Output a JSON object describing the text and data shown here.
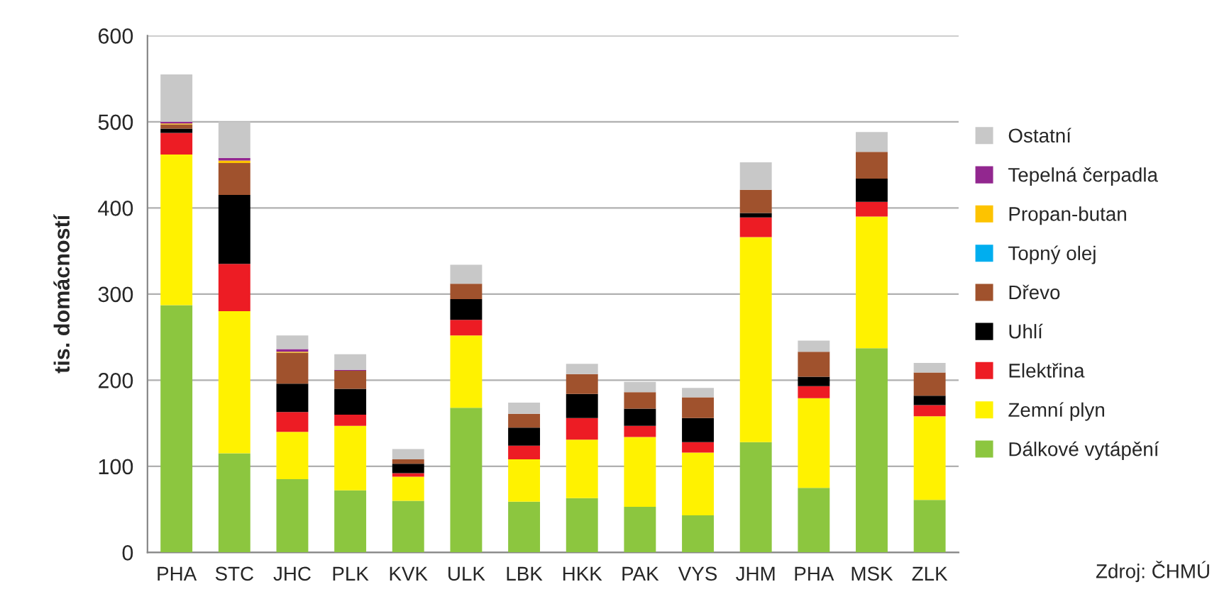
{
  "chart_data": {
    "type": "bar",
    "stacked": true,
    "ylabel": "tis. domácností",
    "categories": [
      "PHA",
      "STC",
      "JHC",
      "PLK",
      "KVK",
      "ULK",
      "LBK",
      "HKK",
      "PAK",
      "VYS",
      "JHM",
      "PHA",
      "MSK",
      "ZLK"
    ],
    "series": [
      {
        "name": "Dálkové vytápění",
        "color": "#8cc63f",
        "values": [
          287,
          115,
          85,
          72,
          60,
          168,
          59,
          63,
          53,
          43,
          128,
          75,
          237,
          61
        ]
      },
      {
        "name": "Zemní plyn",
        "color": "#fff200",
        "values": [
          175,
          165,
          55,
          75,
          28,
          84,
          49,
          68,
          81,
          73,
          238,
          104,
          153,
          97
        ]
      },
      {
        "name": "Elektřina",
        "color": "#ed1c24",
        "values": [
          25,
          55,
          23,
          13,
          4,
          18,
          16,
          25,
          13,
          12,
          23,
          14,
          17,
          13
        ]
      },
      {
        "name": "Uhlí",
        "color": "#000000",
        "values": [
          5,
          80,
          33,
          30,
          11,
          24,
          21,
          28,
          20,
          28,
          5,
          11,
          27,
          11
        ]
      },
      {
        "name": "Dřevo",
        "color": "#a0522d",
        "values": [
          5,
          37,
          36,
          21,
          5,
          18,
          16,
          23,
          19,
          24,
          27,
          29,
          31,
          27
        ]
      },
      {
        "name": "Topný olej",
        "color": "#00aeef",
        "values": [
          0,
          0,
          0,
          0,
          0,
          0,
          0,
          0,
          0,
          0,
          0,
          0,
          0,
          0
        ]
      },
      {
        "name": "Propan-butan",
        "color": "#fdc300",
        "values": [
          1,
          3,
          1,
          0,
          0,
          0,
          0,
          0,
          0,
          0,
          0,
          0,
          0,
          0
        ]
      },
      {
        "name": "Tepelná čerpadla",
        "color": "#92278f",
        "values": [
          2,
          3,
          3,
          1,
          0,
          0,
          0,
          0,
          0,
          0,
          0,
          0,
          0,
          0
        ]
      },
      {
        "name": "Ostatní",
        "color": "#c8c8c8",
        "values": [
          55,
          42,
          16,
          18,
          12,
          22,
          13,
          12,
          12,
          11,
          32,
          13,
          23,
          11
        ]
      }
    ],
    "ylim": [
      0,
      600
    ],
    "yticks": [
      0,
      100,
      200,
      300,
      400,
      500,
      600
    ],
    "grid": "y",
    "legend": "right",
    "annotations": [
      "Zdroj: ČHMÚ"
    ]
  }
}
